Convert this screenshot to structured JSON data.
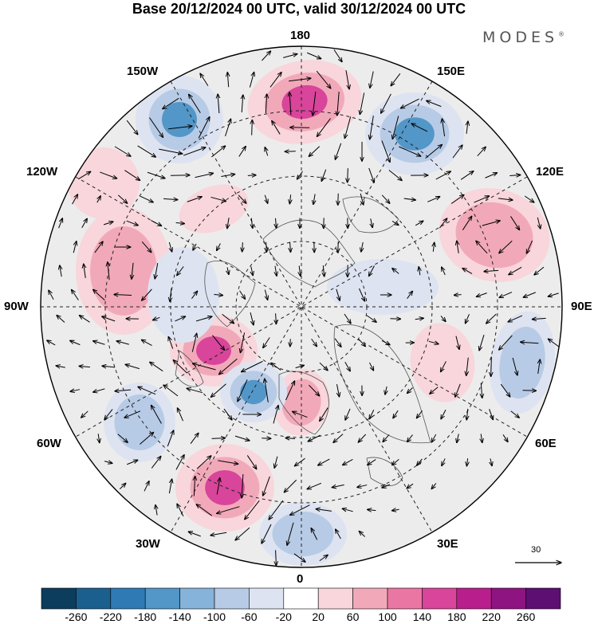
{
  "title": "Base 20/12/2024 00 UTC, valid 30/12/2024 00 UTC",
  "brand": "MODES",
  "brand_mark": "®",
  "longitude_labels": {
    "top": "180",
    "bottom": "0",
    "left": "90W",
    "right": "90E",
    "upper_left_150": "150W",
    "upper_left_120": "120W",
    "upper_right_150": "150E",
    "upper_right_120": "120E",
    "lower_left_60": "60W",
    "lower_left_30": "30W",
    "lower_right_60": "60E",
    "lower_right_30": "30E"
  },
  "vector_scale": {
    "value": "30"
  },
  "colorbar": {
    "labels": [
      "-260",
      "-220",
      "-180",
      "-140",
      "-100",
      "-60",
      "-20",
      "20",
      "60",
      "100",
      "140",
      "180",
      "220",
      "260"
    ],
    "colors": [
      "#0d3d5c",
      "#1b5f8f",
      "#2f7ab4",
      "#5396c8",
      "#86b3da",
      "#b7cbe6",
      "#dde3f0",
      "#ffffff",
      "#f8d6db",
      "#f1a9b9",
      "#ea76a4",
      "#d8459a",
      "#b81f8c",
      "#8e1482",
      "#5e0f72"
    ]
  },
  "anomalies": [
    {
      "sign": "positive",
      "level": 3
    },
    {
      "sign": "positive",
      "level": 2
    },
    {
      "sign": "positive",
      "level": 1
    },
    {
      "sign": "positive",
      "level": 3
    },
    {
      "sign": "positive",
      "level": 2
    },
    {
      "sign": "positive",
      "level": 3
    },
    {
      "sign": "positive",
      "level": 1
    },
    {
      "sign": "positive",
      "level": 2
    },
    {
      "sign": "positive",
      "level": 1
    },
    {
      "sign": "negative",
      "level": 3
    },
    {
      "sign": "negative",
      "level": 3
    },
    {
      "sign": "negative",
      "level": 3
    },
    {
      "sign": "negative",
      "level": 2
    },
    {
      "sign": "negative",
      "level": 2
    },
    {
      "sign": "negative",
      "level": 2
    },
    {
      "sign": "negative",
      "level": 1
    },
    {
      "sign": "negative",
      "level": 1
    }
  ]
}
